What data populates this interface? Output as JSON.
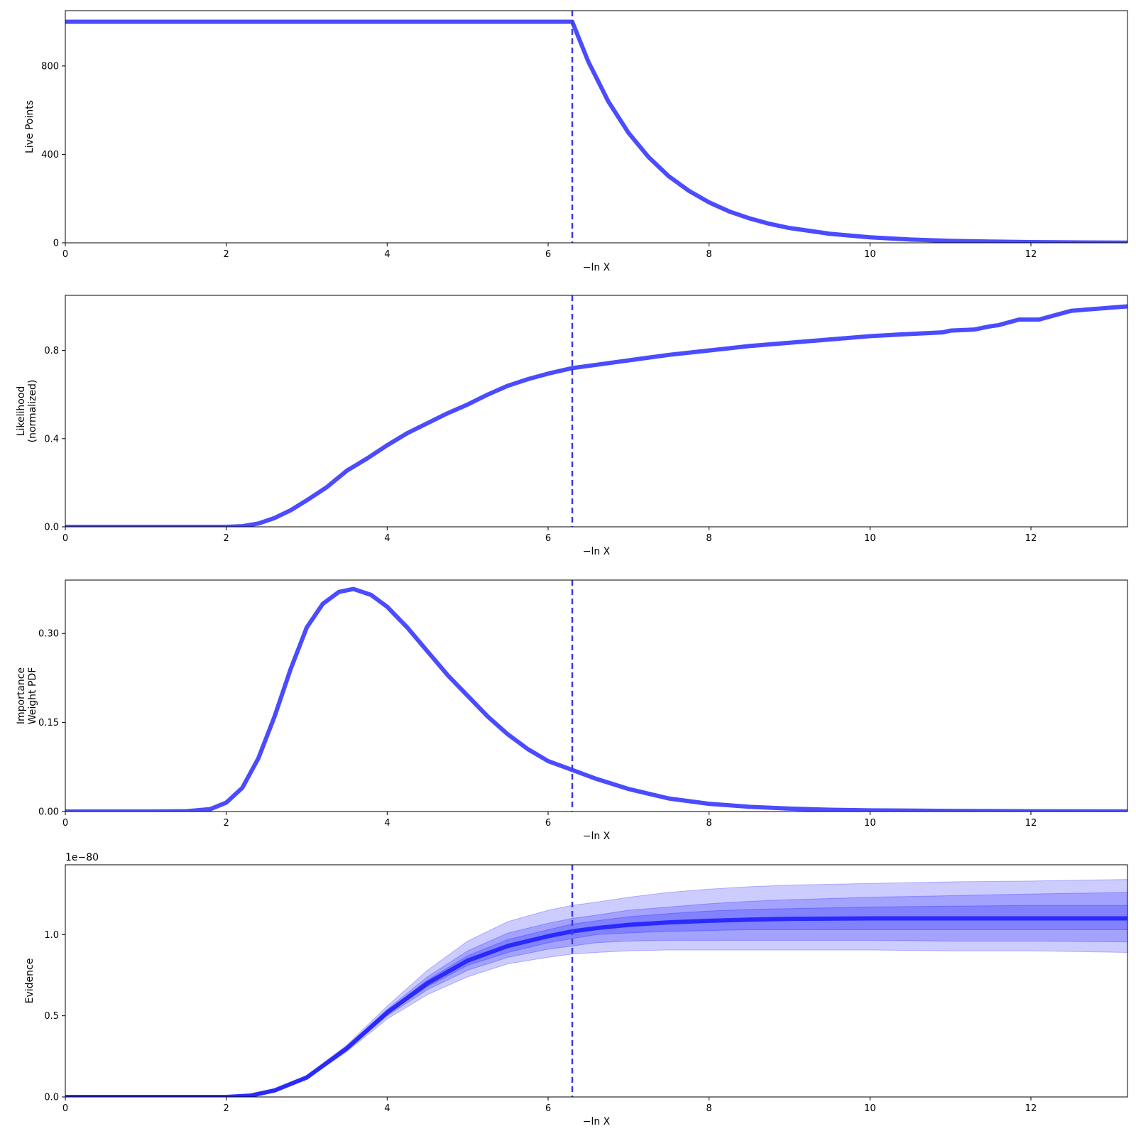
{
  "colors": {
    "line": "#4b4bff",
    "evidence_line": "#2a2aff",
    "band": "#0000ff",
    "vline": "#3a3ae6"
  },
  "chart_data": [
    {
      "type": "line",
      "id": "live-points",
      "ylabel": [
        "Live Points"
      ],
      "xlabel": "−ln X",
      "xlim": [
        0,
        13.2
      ],
      "ylim": [
        0,
        1050
      ],
      "xticks": [
        0,
        2,
        4,
        6,
        8,
        10,
        12
      ],
      "xtick_labels": [
        "0",
        "2",
        "4",
        "6",
        "8",
        "10",
        "12"
      ],
      "yticks": [
        0,
        400,
        800
      ],
      "ytick_labels": [
        "0",
        "400",
        "800"
      ],
      "vline_x": 6.3,
      "series": [
        {
          "values_description": "constant then exponential decay",
          "x": [
            0,
            1,
            2,
            3,
            4,
            5,
            6,
            6.3,
            6.5,
            6.75,
            7.0,
            7.25,
            7.5,
            7.75,
            8.0,
            8.25,
            8.5,
            8.75,
            9.0,
            9.5,
            10.0,
            10.5,
            11.0,
            11.5,
            12.0,
            12.5,
            13.2
          ],
          "y": [
            1000,
            1000,
            1000,
            1000,
            1000,
            1000,
            1000,
            1000,
            819,
            638,
            497,
            387,
            301,
            235,
            183,
            142,
            111,
            86,
            67,
            41,
            25,
            15,
            9,
            5.5,
            3.3,
            2,
            1
          ]
        }
      ]
    },
    {
      "type": "line",
      "id": "likelihood",
      "ylabel": [
        "Likelihood",
        "(normalized)"
      ],
      "xlabel": "−ln X",
      "xlim": [
        0,
        13.2
      ],
      "ylim": [
        0,
        1.05
      ],
      "xticks": [
        0,
        2,
        4,
        6,
        8,
        10,
        12
      ],
      "xtick_labels": [
        "0",
        "2",
        "4",
        "6",
        "8",
        "10",
        "12"
      ],
      "yticks": [
        0,
        0.4,
        0.8
      ],
      "ytick_labels": [
        "0.0",
        "0.4",
        "0.8"
      ],
      "vline_x": 6.3,
      "series": [
        {
          "x": [
            0,
            1,
            2,
            2.2,
            2.4,
            2.6,
            2.8,
            3.0,
            3.25,
            3.5,
            3.75,
            4.0,
            4.25,
            4.5,
            4.75,
            5.0,
            5.25,
            5.5,
            5.75,
            6.0,
            6.3,
            6.6,
            7.0,
            7.5,
            8.0,
            8.5,
            9.0,
            9.5,
            10.0,
            10.5,
            10.9,
            11.0,
            11.3,
            11.5,
            11.6,
            11.85,
            12.1,
            12.5,
            13.2
          ],
          "y": [
            0,
            0,
            0,
            0.003,
            0.015,
            0.04,
            0.075,
            0.12,
            0.18,
            0.255,
            0.31,
            0.37,
            0.425,
            0.47,
            0.515,
            0.555,
            0.6,
            0.64,
            0.67,
            0.695,
            0.72,
            0.735,
            0.755,
            0.78,
            0.8,
            0.82,
            0.835,
            0.85,
            0.865,
            0.875,
            0.882,
            0.89,
            0.895,
            0.91,
            0.915,
            0.94,
            0.94,
            0.98,
            1.0
          ]
        }
      ]
    },
    {
      "type": "line",
      "id": "importance-weight",
      "ylabel": [
        "Importance",
        "Weight PDF"
      ],
      "xlabel": "−ln X",
      "xlim": [
        0,
        13.2
      ],
      "ylim": [
        0,
        0.39
      ],
      "xticks": [
        0,
        2,
        4,
        6,
        8,
        10,
        12
      ],
      "xtick_labels": [
        "0",
        "2",
        "4",
        "6",
        "8",
        "10",
        "12"
      ],
      "yticks": [
        0,
        0.15,
        0.3
      ],
      "ytick_labels": [
        "0.00",
        "0.15",
        "0.30"
      ],
      "vline_x": 6.3,
      "series": [
        {
          "x": [
            0,
            1,
            1.5,
            1.8,
            2.0,
            2.2,
            2.4,
            2.6,
            2.8,
            3.0,
            3.2,
            3.4,
            3.58,
            3.8,
            4.0,
            4.25,
            4.5,
            4.75,
            5.0,
            5.25,
            5.5,
            5.75,
            6.0,
            6.3,
            6.6,
            7.0,
            7.5,
            8.0,
            8.5,
            9.0,
            9.5,
            10.0,
            11.0,
            12.0,
            13.2
          ],
          "y": [
            0,
            0,
            0.0005,
            0.004,
            0.015,
            0.04,
            0.09,
            0.16,
            0.24,
            0.31,
            0.35,
            0.37,
            0.375,
            0.365,
            0.345,
            0.31,
            0.27,
            0.23,
            0.195,
            0.16,
            0.13,
            0.105,
            0.085,
            0.07,
            0.055,
            0.038,
            0.022,
            0.013,
            0.008,
            0.005,
            0.003,
            0.002,
            0.001,
            0.0005,
            0.0002
          ]
        }
      ]
    },
    {
      "type": "area",
      "id": "evidence",
      "ylabel": [
        "Evidence"
      ],
      "xlabel": "−ln X",
      "offset_label": "1e−80",
      "xlim": [
        0,
        13.2
      ],
      "ylim": [
        0,
        1.43
      ],
      "xticks": [
        0,
        2,
        4,
        6,
        8,
        10,
        12
      ],
      "xtick_labels": [
        "0",
        "2",
        "4",
        "6",
        "8",
        "10",
        "12"
      ],
      "yticks": [
        0,
        0.5,
        1.0
      ],
      "ytick_labels": [
        "0.0",
        "0.5",
        "1.0"
      ],
      "vline_x": 6.3,
      "x": [
        0,
        1,
        2,
        2.3,
        2.6,
        3.0,
        3.5,
        4.0,
        4.5,
        5.0,
        5.5,
        6.0,
        6.3,
        6.6,
        7.0,
        7.5,
        8.0,
        8.5,
        9.0,
        10.0,
        11.0,
        12.0,
        13.2
      ],
      "median": [
        0,
        0,
        0,
        0.008,
        0.04,
        0.12,
        0.3,
        0.52,
        0.7,
        0.84,
        0.93,
        0.99,
        1.02,
        1.04,
        1.06,
        1.075,
        1.085,
        1.092,
        1.097,
        1.1,
        1.1,
        1.1,
        1.1
      ],
      "bands": [
        {
          "lower": [
            0,
            0,
            0,
            0.006,
            0.036,
            0.11,
            0.28,
            0.48,
            0.63,
            0.74,
            0.82,
            0.86,
            0.88,
            0.89,
            0.9,
            0.905,
            0.905,
            0.905,
            0.905,
            0.905,
            0.9,
            0.9,
            0.89
          ],
          "upper": [
            0,
            0,
            0,
            0.01,
            0.045,
            0.13,
            0.32,
            0.56,
            0.78,
            0.96,
            1.08,
            1.15,
            1.18,
            1.2,
            1.23,
            1.26,
            1.28,
            1.295,
            1.305,
            1.315,
            1.325,
            1.33,
            1.34
          ]
        },
        {
          "lower": [
            0,
            0,
            0,
            0.007,
            0.038,
            0.115,
            0.29,
            0.5,
            0.66,
            0.78,
            0.86,
            0.91,
            0.93,
            0.95,
            0.96,
            0.965,
            0.965,
            0.965,
            0.965,
            0.965,
            0.96,
            0.96,
            0.955
          ],
          "upper": [
            0,
            0,
            0,
            0.009,
            0.043,
            0.125,
            0.31,
            0.54,
            0.74,
            0.9,
            1.01,
            1.07,
            1.1,
            1.12,
            1.15,
            1.17,
            1.19,
            1.205,
            1.215,
            1.23,
            1.24,
            1.25,
            1.26
          ]
        },
        {
          "lower": [
            0,
            0,
            0,
            0.0075,
            0.039,
            0.117,
            0.295,
            0.51,
            0.68,
            0.81,
            0.89,
            0.95,
            0.975,
            1.0,
            1.01,
            1.02,
            1.025,
            1.03,
            1.03,
            1.03,
            1.03,
            1.03,
            1.03
          ],
          "upper": [
            0,
            0,
            0,
            0.0085,
            0.041,
            0.123,
            0.305,
            0.53,
            0.72,
            0.87,
            0.97,
            1.03,
            1.065,
            1.085,
            1.11,
            1.13,
            1.145,
            1.155,
            1.16,
            1.17,
            1.175,
            1.18,
            1.18
          ]
        }
      ]
    }
  ]
}
